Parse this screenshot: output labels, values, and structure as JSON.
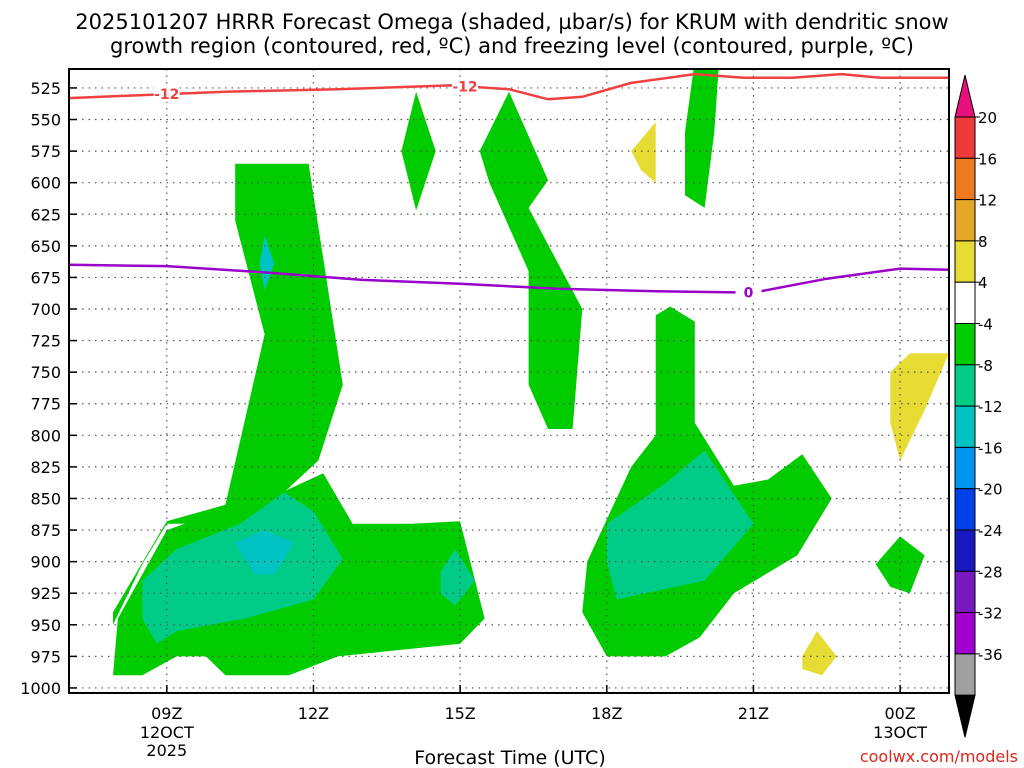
{
  "chart_data": {
    "type": "contour",
    "title_line1": "2025101207 HRRR Forecast Omega (shaded, µbar/s) for KRUM with dendritic snow",
    "title_line2": "growth region (contoured, red, ºC) and freezing level (contoured, purple, ºC)",
    "xlabel": "Forecast Time (UTC)",
    "credit": "coolwx.com/models",
    "x_ticks": [
      {
        "hours": 2,
        "label": "09Z",
        "sub1": "12OCT",
        "sub2": "2025"
      },
      {
        "hours": 5,
        "label": "12Z",
        "sub1": "",
        "sub2": ""
      },
      {
        "hours": 8,
        "label": "15Z",
        "sub1": "",
        "sub2": ""
      },
      {
        "hours": 11,
        "label": "18Z",
        "sub1": "",
        "sub2": ""
      },
      {
        "hours": 14,
        "label": "21Z",
        "sub1": "",
        "sub2": ""
      },
      {
        "hours": 17,
        "label": "00Z",
        "sub1": "13OCT",
        "sub2": ""
      }
    ],
    "x_range_hours": [
      0,
      18
    ],
    "y_levels_hPa": [
      525,
      550,
      575,
      600,
      625,
      650,
      675,
      700,
      725,
      750,
      775,
      800,
      825,
      850,
      875,
      900,
      925,
      950,
      975,
      1000
    ],
    "y_range_hPa": [
      510,
      1004
    ],
    "colorbar": {
      "labels": [
        "20",
        "16",
        "12",
        "8",
        "4",
        "-4",
        "-8",
        "-12",
        "-16",
        "-20",
        "-24",
        "-28",
        "-32",
        "-36"
      ],
      "colors": [
        "#e8107c",
        "#ee3a3a",
        "#ee7a20",
        "#e4a828",
        "#e6dc34",
        "#ffffff",
        "#00cc00",
        "#00cc88",
        "#00c4c4",
        "#0096f0",
        "#0040e8",
        "#1818c0",
        "#7818c0",
        "#a000d0",
        "#a0a0a0",
        "#000000"
      ]
    },
    "dgz_contour": {
      "label": "-12",
      "color": "#f04040",
      "points": [
        [
          0,
          533
        ],
        [
          3.2,
          528
        ],
        [
          5.5,
          526
        ],
        [
          7.8,
          523
        ],
        [
          9,
          526
        ],
        [
          9.8,
          534
        ],
        [
          10.5,
          532
        ],
        [
          11.5,
          521
        ],
        [
          12.8,
          514
        ],
        [
          13.8,
          517
        ],
        [
          14.8,
          517
        ],
        [
          15.8,
          514
        ],
        [
          16.6,
          517
        ],
        [
          18,
          517
        ]
      ]
    },
    "freezing_contour": {
      "label": "0",
      "color": "#9a00c8",
      "points": [
        [
          0,
          665
        ],
        [
          2,
          666
        ],
        [
          4,
          671
        ],
        [
          6,
          677
        ],
        [
          8,
          680
        ],
        [
          10,
          684
        ],
        [
          12,
          686
        ],
        [
          14,
          687
        ],
        [
          15.5,
          676
        ],
        [
          17,
          668
        ],
        [
          18,
          669
        ]
      ]
    },
    "omega_regions": [
      {
        "category": "-4 to -8",
        "color": "#00cc00",
        "points": [
          [
            0.9,
            1000
          ],
          [
            0.9,
            950
          ],
          [
            1.5,
            902
          ],
          [
            2,
            870
          ],
          [
            3.3,
            870
          ],
          [
            4.4,
            845
          ],
          [
            5.1,
            820
          ],
          [
            5.6,
            760
          ],
          [
            4.9,
            585
          ],
          [
            3.4,
            585
          ],
          [
            3.4,
            630
          ],
          [
            4.0,
            720
          ],
          [
            3.2,
            855
          ],
          [
            2.0,
            868
          ],
          [
            0.9,
            940
          ]
        ]
      },
      {
        "category": "-4 to -8",
        "color": "#00cc00",
        "points": [
          [
            0.9,
            990
          ],
          [
            1.0,
            945
          ],
          [
            2.0,
            875
          ],
          [
            3.1,
            860
          ],
          [
            4.2,
            848
          ],
          [
            5.2,
            830
          ],
          [
            5.8,
            870
          ],
          [
            7.0,
            870
          ],
          [
            8.0,
            868
          ],
          [
            8.5,
            945
          ],
          [
            8.0,
            965
          ],
          [
            5.5,
            975
          ],
          [
            4.5,
            990
          ],
          [
            3.2,
            990
          ],
          [
            2.8,
            975
          ],
          [
            2.2,
            975
          ],
          [
            1.5,
            990
          ]
        ]
      },
      {
        "category": "-4 to -8",
        "color": "#00cc00",
        "points": [
          [
            6.8,
            575
          ],
          [
            7.1,
            528
          ],
          [
            7.5,
            575
          ],
          [
            7.1,
            622
          ]
        ]
      },
      {
        "category": "-4 to -8",
        "color": "#00cc00",
        "points": [
          [
            8.4,
            575
          ],
          [
            9.0,
            528
          ],
          [
            9.8,
            598
          ],
          [
            9.4,
            620
          ],
          [
            10.5,
            700
          ],
          [
            10.3,
            795
          ],
          [
            9.8,
            795
          ],
          [
            9.4,
            760
          ],
          [
            9.4,
            670
          ],
          [
            8.6,
            600
          ]
        ]
      },
      {
        "category": "-4 to -8",
        "color": "#00cc00",
        "points": [
          [
            12.8,
            503
          ],
          [
            13.3,
            503
          ],
          [
            13.2,
            560
          ],
          [
            13.0,
            620
          ],
          [
            12.6,
            610
          ],
          [
            12.6,
            560
          ]
        ]
      },
      {
        "category": "-4 to -8",
        "color": "#00cc00",
        "points": [
          [
            10.6,
            900
          ],
          [
            11.5,
            825
          ],
          [
            12.0,
            800
          ],
          [
            12.0,
            705
          ],
          [
            12.3,
            698
          ],
          [
            12.8,
            710
          ],
          [
            12.8,
            790
          ],
          [
            13.6,
            840
          ],
          [
            14.3,
            835
          ],
          [
            15.0,
            815
          ],
          [
            15.6,
            850
          ],
          [
            14.9,
            895
          ],
          [
            13.6,
            925
          ],
          [
            12.9,
            960
          ],
          [
            12.2,
            975
          ],
          [
            11.0,
            975
          ],
          [
            10.5,
            940
          ]
        ]
      },
      {
        "category": "-4 to -8",
        "color": "#00cc00",
        "points": [
          [
            16.5,
            902
          ],
          [
            17.0,
            880
          ],
          [
            17.5,
            895
          ],
          [
            17.2,
            925
          ],
          [
            16.8,
            920
          ]
        ]
      },
      {
        "category": "-8 to -12",
        "color": "#00cc88",
        "points": [
          [
            1.5,
            915
          ],
          [
            2.2,
            890
          ],
          [
            3.5,
            870
          ],
          [
            4.4,
            845
          ],
          [
            5.0,
            860
          ],
          [
            5.6,
            898
          ],
          [
            5.0,
            930
          ],
          [
            3.6,
            945
          ],
          [
            2.2,
            955
          ],
          [
            1.8,
            965
          ],
          [
            1.5,
            945
          ]
        ]
      },
      {
        "category": "-8 to -12",
        "color": "#00cc88",
        "points": [
          [
            7.6,
            908
          ],
          [
            7.9,
            890
          ],
          [
            8.3,
            915
          ],
          [
            7.9,
            935
          ],
          [
            7.6,
            925
          ]
        ]
      },
      {
        "category": "-8 to -12",
        "color": "#00cc88",
        "points": [
          [
            11.0,
            870
          ],
          [
            12.2,
            838
          ],
          [
            13.0,
            812
          ],
          [
            14.0,
            870
          ],
          [
            13.0,
            915
          ],
          [
            11.2,
            930
          ],
          [
            11.0,
            900
          ]
        ]
      },
      {
        "category": "-12 to -16",
        "color": "#00c4c4",
        "points": [
          [
            3.4,
            885
          ],
          [
            4.0,
            875
          ],
          [
            4.6,
            885
          ],
          [
            4.2,
            910
          ],
          [
            3.8,
            910
          ]
        ]
      },
      {
        "category": "-12 to -16",
        "color": "#00c4c4",
        "points": [
          [
            3.9,
            664
          ],
          [
            4.0,
            642
          ],
          [
            4.2,
            664
          ],
          [
            4.0,
            685
          ]
        ]
      },
      {
        "category": "4 to 8",
        "color": "#e6dc34",
        "points": [
          [
            11.5,
            575
          ],
          [
            12.0,
            552
          ],
          [
            12.0,
            600
          ],
          [
            11.7,
            590
          ]
        ]
      },
      {
        "category": "4 to 8",
        "color": "#e6dc34",
        "points": [
          [
            16.8,
            750
          ],
          [
            17.2,
            735
          ],
          [
            18.0,
            735
          ],
          [
            17.5,
            780
          ],
          [
            17.0,
            820
          ],
          [
            16.8,
            790
          ]
        ]
      },
      {
        "category": "4 to 8",
        "color": "#e6dc34",
        "points": [
          [
            15.0,
            975
          ],
          [
            15.3,
            955
          ],
          [
            15.7,
            975
          ],
          [
            15.4,
            990
          ],
          [
            15.0,
            985
          ]
        ]
      }
    ],
    "surface_band": {
      "color": "#a0522d",
      "top_hPa": 1000
    }
  }
}
